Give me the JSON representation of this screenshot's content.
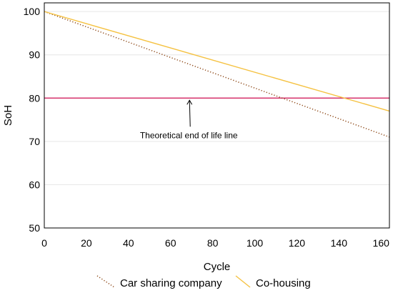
{
  "chart_data": {
    "type": "line",
    "xlabel": "Cycle",
    "ylabel": "SoH",
    "xlim": [
      0,
      164
    ],
    "ylim": [
      50,
      102
    ],
    "xticks": [
      0,
      20,
      40,
      60,
      80,
      100,
      120,
      140,
      160
    ],
    "yticks": [
      50,
      60,
      70,
      80,
      90,
      100
    ],
    "grid": true,
    "legend_position": "bottom",
    "series": [
      {
        "name": "Car sharing company",
        "style": "dotted",
        "color": "#8B4513",
        "x": [
          0,
          164
        ],
        "y": [
          100,
          71
        ]
      },
      {
        "name": "Co-housing",
        "style": "solid",
        "color": "#F5C242",
        "x": [
          0,
          164
        ],
        "y": [
          100,
          77
        ]
      }
    ],
    "reference_line": {
      "y": 80,
      "color": "#D6336C"
    },
    "annotation": {
      "text": "Theoretical end of life line",
      "arrow_to": {
        "x": 69,
        "y": 80
      }
    }
  }
}
